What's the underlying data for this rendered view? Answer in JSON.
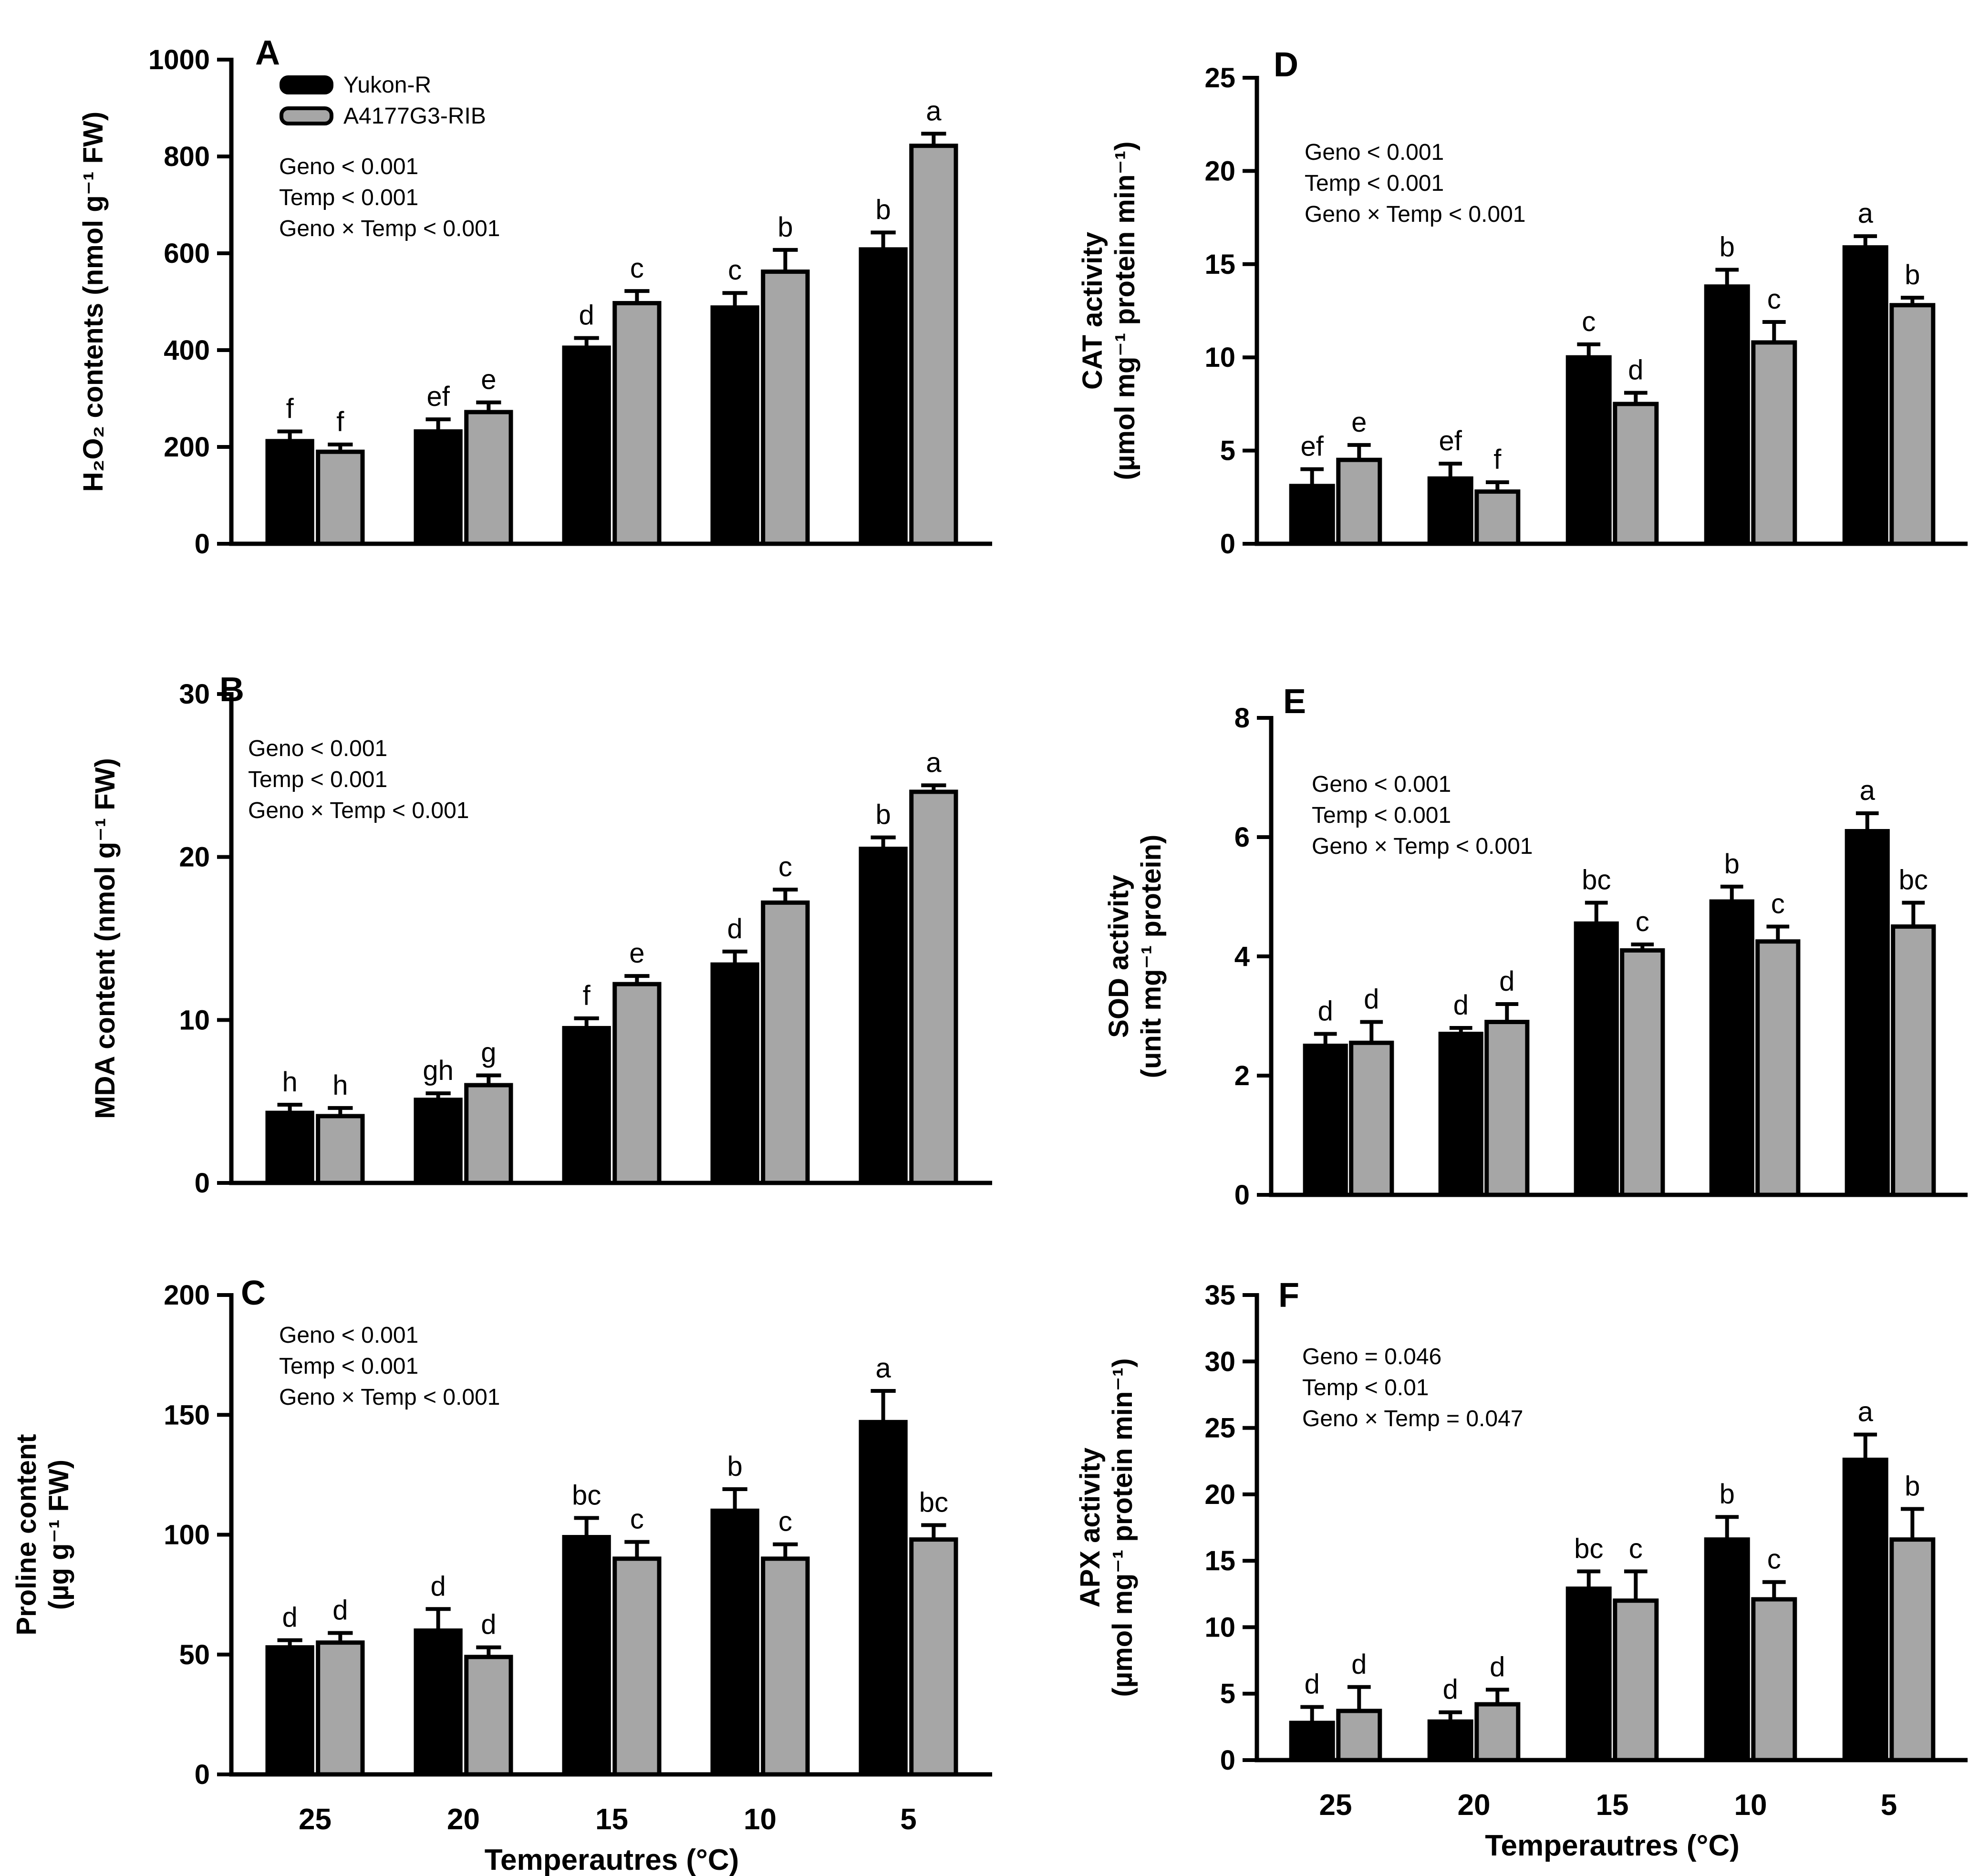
{
  "figure": {
    "x_axis_title": "Temperautres (°C)"
  },
  "colors": {
    "yukon": "#000000",
    "a4177": "#a6a6a6",
    "axis": "#000000"
  },
  "chart_data": [
    {
      "panel": "A",
      "type": "bar",
      "ylabel": "H₂O₂ contents (nmol g⁻¹ FW)",
      "ylabel_lines": [
        "H₂O₂ contents (nmol g⁻¹ FW)"
      ],
      "ylim": [
        0,
        1000
      ],
      "yticks": [
        0,
        200,
        400,
        600,
        800,
        1000
      ],
      "categories": [
        "25",
        "20",
        "15",
        "10",
        "5"
      ],
      "show_xticks": false,
      "legend": [
        "Yukon-R",
        "A4177G3-RIB"
      ],
      "stats": [
        "Geno < 0.001",
        "Temp < 0.001",
        "Geno × Temp < 0.001"
      ],
      "series": [
        {
          "name": "Yukon-R",
          "values": [
            212,
            232,
            405,
            488,
            608
          ],
          "errors": [
            20,
            25,
            20,
            30,
            35
          ],
          "letters": [
            "f",
            "ef",
            "d",
            "c",
            "b"
          ]
        },
        {
          "name": "A4177G3-RIB",
          "values": [
            190,
            272,
            497,
            562,
            822
          ],
          "errors": [
            15,
            20,
            25,
            45,
            25
          ],
          "letters": [
            "f",
            "e",
            "c",
            "b",
            "a"
          ]
        }
      ]
    },
    {
      "panel": "B",
      "type": "bar",
      "ylabel": "MDA content (nmol g⁻¹ FW)",
      "ylabel_lines": [
        "MDA content (nmol g⁻¹ FW)"
      ],
      "ylim": [
        0,
        30
      ],
      "yticks": [
        0,
        10,
        20,
        30
      ],
      "categories": [
        "25",
        "20",
        "15",
        "10",
        "5"
      ],
      "show_xticks": false,
      "stats": [
        "Geno < 0.001",
        "Temp < 0.001",
        "Geno × Temp < 0.001"
      ],
      "series": [
        {
          "name": "Yukon-R",
          "values": [
            4.3,
            5.1,
            9.5,
            13.4,
            20.5
          ],
          "errors": [
            0.5,
            0.4,
            0.6,
            0.8,
            0.7
          ],
          "letters": [
            "h",
            "gh",
            "f",
            "d",
            "b"
          ]
        },
        {
          "name": "A4177G3-RIB",
          "values": [
            4.1,
            6.0,
            12.2,
            17.2,
            24.0
          ],
          "errors": [
            0.5,
            0.6,
            0.5,
            0.8,
            0.4
          ],
          "letters": [
            "h",
            "g",
            "e",
            "c",
            "a"
          ]
        }
      ]
    },
    {
      "panel": "C",
      "type": "bar",
      "ylabel": "Proline content (µg g⁻¹ FW)",
      "ylabel_lines": [
        "Proline content",
        "(µg g⁻¹ FW)"
      ],
      "ylim": [
        0,
        200
      ],
      "yticks": [
        0,
        50,
        100,
        150,
        200
      ],
      "categories": [
        "25",
        "20",
        "15",
        "10",
        "5"
      ],
      "show_xticks": true,
      "xlabel": "Temperautres (°C)",
      "stats": [
        "Geno < 0.001",
        "Temp < 0.001",
        "Geno × Temp < 0.001"
      ],
      "series": [
        {
          "name": "Yukon-R",
          "values": [
            53,
            60,
            99,
            110,
            147
          ],
          "errors": [
            3,
            9,
            8,
            9,
            13
          ],
          "letters": [
            "d",
            "d",
            "bc",
            "b",
            "a"
          ]
        },
        {
          "name": "A4177G3-RIB",
          "values": [
            55,
            49,
            90,
            90,
            98
          ],
          "errors": [
            4,
            4,
            7,
            6,
            6
          ],
          "letters": [
            "d",
            "d",
            "c",
            "c",
            "bc"
          ]
        }
      ]
    },
    {
      "panel": "D",
      "type": "bar",
      "ylabel": "CAT activity (µmol mg⁻¹ protein min⁻¹)",
      "ylabel_lines": [
        "CAT activity",
        "(µmol mg⁻¹ protein min⁻¹)"
      ],
      "ylim": [
        0,
        25
      ],
      "yticks": [
        0,
        5,
        10,
        15,
        20,
        25
      ],
      "categories": [
        "25",
        "20",
        "15",
        "10",
        "5"
      ],
      "show_xticks": false,
      "stats": [
        "Geno < 0.001",
        "Temp < 0.001",
        "Geno × Temp < 0.001"
      ],
      "series": [
        {
          "name": "Yukon-R",
          "values": [
            3.1,
            3.5,
            10.0,
            13.8,
            15.9
          ],
          "errors": [
            0.9,
            0.8,
            0.7,
            0.9,
            0.6
          ],
          "letters": [
            "ef",
            "ef",
            "c",
            "b",
            "a"
          ]
        },
        {
          "name": "A4177G3-RIB",
          "values": [
            4.5,
            2.8,
            7.5,
            10.8,
            12.8
          ],
          "errors": [
            0.8,
            0.5,
            0.6,
            1.1,
            0.4
          ],
          "letters": [
            "e",
            "f",
            "d",
            "c",
            "b"
          ]
        }
      ]
    },
    {
      "panel": "E",
      "type": "bar",
      "ylabel": "SOD activity (unit mg⁻¹ protein)",
      "ylabel_lines": [
        "SOD activity",
        "(unit mg⁻¹ protein)"
      ],
      "ylim": [
        0,
        8
      ],
      "yticks": [
        0,
        2,
        4,
        6,
        8
      ],
      "categories": [
        "25",
        "20",
        "15",
        "10",
        "5"
      ],
      "show_xticks": false,
      "stats": [
        "Geno < 0.001",
        "Temp < 0.001",
        "Geno × Temp < 0.001"
      ],
      "series": [
        {
          "name": "Yukon-R",
          "values": [
            2.5,
            2.7,
            4.55,
            4.92,
            6.1
          ],
          "errors": [
            0.2,
            0.1,
            0.35,
            0.25,
            0.3
          ],
          "letters": [
            "d",
            "d",
            "bc",
            "b",
            "a"
          ]
        },
        {
          "name": "A4177G3-RIB",
          "values": [
            2.55,
            2.9,
            4.1,
            4.25,
            4.5
          ],
          "errors": [
            0.35,
            0.3,
            0.1,
            0.25,
            0.4
          ],
          "letters": [
            "d",
            "d",
            "c",
            "c",
            "bc"
          ]
        }
      ]
    },
    {
      "panel": "F",
      "type": "bar",
      "ylabel": "APX activity (µmol mg⁻¹ protein min⁻¹)",
      "ylabel_lines": [
        "APX activity",
        "(µmol mg⁻¹ protein min⁻¹)"
      ],
      "ylim": [
        0,
        35
      ],
      "yticks": [
        0,
        5,
        10,
        15,
        20,
        25,
        30,
        35
      ],
      "categories": [
        "25",
        "20",
        "15",
        "10",
        "5"
      ],
      "show_xticks": true,
      "xlabel": "Temperautres (°C)",
      "stats": [
        "Geno = 0.046",
        "Temp < 0.01",
        "Geno × Temp = 0.047"
      ],
      "series": [
        {
          "name": "Yukon-R",
          "values": [
            2.8,
            2.9,
            12.9,
            16.6,
            22.6
          ],
          "errors": [
            1.2,
            0.7,
            1.3,
            1.7,
            1.9
          ],
          "letters": [
            "d",
            "d",
            "bc",
            "b",
            "a"
          ]
        },
        {
          "name": "A4177G3-RIB",
          "values": [
            3.7,
            4.2,
            12.0,
            12.1,
            16.6
          ],
          "errors": [
            1.8,
            1.1,
            2.2,
            1.3,
            2.3
          ],
          "letters": [
            "d",
            "d",
            "c",
            "c",
            "b"
          ]
        }
      ]
    }
  ]
}
